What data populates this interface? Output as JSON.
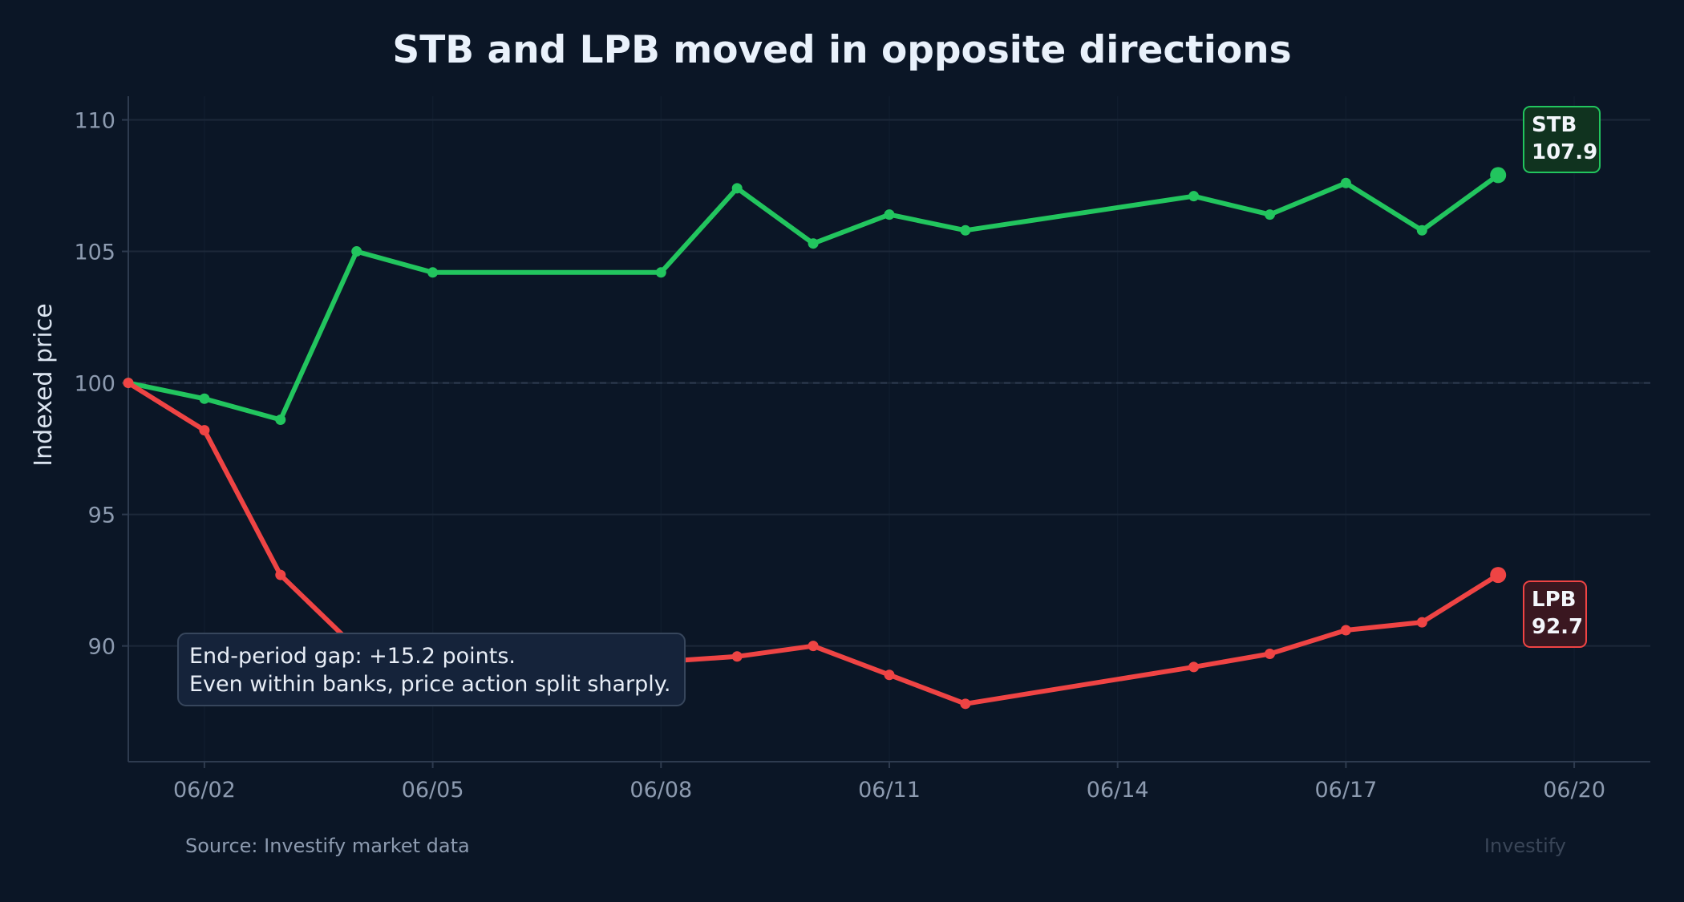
{
  "chart_data": {
    "type": "line",
    "title": "STB and LPB moved in opposite directions",
    "xlabel": "",
    "ylabel": "Indexed price",
    "x_ticks": [
      "06/02",
      "06/05",
      "06/08",
      "06/11",
      "06/14",
      "06/17",
      "06/20"
    ],
    "x_tick_days": [
      2,
      5,
      8,
      11,
      14,
      17,
      20
    ],
    "xlim": [
      1,
      21
    ],
    "y_ticks": [
      90,
      95,
      100,
      105,
      110
    ],
    "ylim": [
      85.6,
      110.9
    ],
    "baseline": 100,
    "grid": true,
    "series": [
      {
        "name": "STB",
        "color": "#22c55e",
        "x": [
          "06/01",
          "06/02",
          "06/03",
          "06/04",
          "06/05",
          "06/08",
          "06/09",
          "06/10",
          "06/11",
          "06/12",
          "06/15",
          "06/16",
          "06/17",
          "06/18",
          "06/19"
        ],
        "x_days": [
          1,
          2,
          3,
          4,
          5,
          8,
          9,
          10,
          11,
          12,
          15,
          16,
          17,
          18,
          19
        ],
        "values": [
          100.0,
          99.4,
          98.6,
          105.0,
          104.2,
          104.2,
          107.4,
          105.3,
          106.4,
          105.8,
          107.1,
          106.4,
          107.6,
          105.8,
          107.9
        ],
        "end_label_value": "107.9"
      },
      {
        "name": "LPB",
        "color": "#ef4444",
        "x": [
          "06/01",
          "06/02",
          "06/03",
          "06/04",
          "06/05",
          "06/08",
          "06/09",
          "06/10",
          "06/11",
          "06/12",
          "06/15",
          "06/16",
          "06/17",
          "06/18",
          "06/19"
        ],
        "x_days": [
          1,
          2,
          3,
          4,
          5,
          8,
          9,
          10,
          11,
          12,
          15,
          16,
          17,
          18,
          19
        ],
        "values": [
          100.0,
          98.2,
          92.7,
          89.9,
          89.4,
          89.4,
          89.6,
          90.0,
          88.9,
          87.8,
          89.2,
          89.7,
          90.6,
          90.9,
          92.7
        ],
        "end_label_value": "92.7"
      }
    ],
    "annotation": {
      "line1": "End-period gap: +15.2 points.",
      "line2": "Even within banks, price action split sharply."
    },
    "source": "Source: Investify market data",
    "brand": "Investify"
  },
  "colors": {
    "background": "#0b1626",
    "grid": "#1c2839",
    "axis": "#2e3b4f",
    "stb": "#22c55e",
    "lpb": "#ef4444"
  }
}
